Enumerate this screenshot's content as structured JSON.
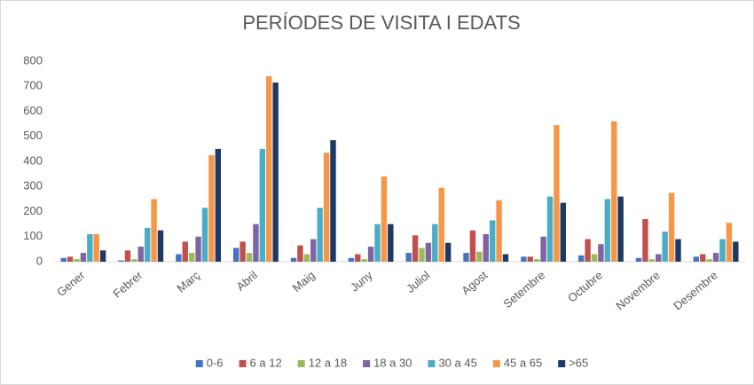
{
  "chart_data": {
    "type": "bar",
    "title": "PERÍODES DE VISITA I EDATS",
    "categories": [
      "Gener",
      "Febrer",
      "Març",
      "Abril",
      "Maig",
      "Juny",
      "Juliol",
      "Agost",
      "Setembre",
      "Octubre",
      "Novembre",
      "Desembre"
    ],
    "series": [
      {
        "name": "0-6",
        "color": "#4472c4",
        "values": [
          15,
          5,
          30,
          55,
          15,
          15,
          35,
          35,
          20,
          25,
          15,
          20
        ]
      },
      {
        "name": "6 a 12",
        "color": "#c0504d",
        "values": [
          20,
          45,
          80,
          80,
          65,
          30,
          105,
          125,
          20,
          90,
          170,
          30
        ]
      },
      {
        "name": "12 a 18",
        "color": "#9bbb59",
        "values": [
          10,
          10,
          35,
          35,
          30,
          10,
          55,
          40,
          10,
          30,
          10,
          10
        ]
      },
      {
        "name": "18 a 30",
        "color": "#8064a2",
        "values": [
          35,
          60,
          100,
          150,
          90,
          60,
          75,
          110,
          100,
          70,
          30,
          35
        ]
      },
      {
        "name": "30 a 45",
        "color": "#4bacc6",
        "values": [
          110,
          135,
          215,
          450,
          215,
          150,
          150,
          165,
          260,
          250,
          120,
          90
        ]
      },
      {
        "name": "45 a 65",
        "color": "#f79646",
        "values": [
          110,
          250,
          425,
          740,
          435,
          340,
          295,
          245,
          545,
          560,
          275,
          155
        ]
      },
      {
        "name": ">65",
        "color": "#1f3864",
        "values": [
          45,
          125,
          450,
          715,
          485,
          150,
          75,
          30,
          235,
          260,
          90,
          80
        ]
      }
    ],
    "ylim": [
      0,
      800
    ],
    "yticks": [
      0,
      100,
      200,
      300,
      400,
      500,
      600,
      700,
      800
    ],
    "grid": false,
    "legend": "bottom"
  }
}
